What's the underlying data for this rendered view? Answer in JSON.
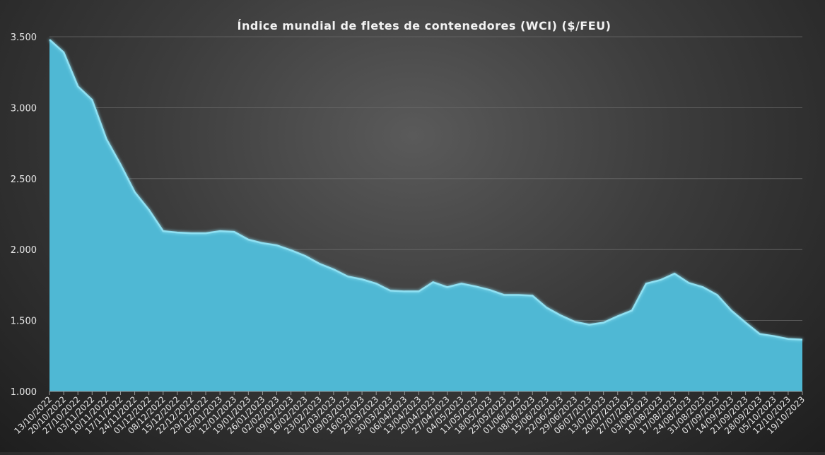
{
  "chart_data": {
    "type": "area",
    "title": "Índice mundial de fletes de contenedores (WCI) ($/FEU)",
    "xlabel": "",
    "ylabel": "",
    "ylim": [
      1000,
      3500
    ],
    "yticks": [
      1000,
      1500,
      2000,
      2500,
      3000,
      3500
    ],
    "ytick_labels": [
      "1.000",
      "1.500",
      "2.000",
      "2.500",
      "3.000",
      "3.500"
    ],
    "grid": true,
    "legend": "none",
    "area_color": "#4fb8d4",
    "area_edge_color": "#8fe0f2",
    "categories": [
      "13/10/2022",
      "20/10/2022",
      "27/10/2022",
      "03/11/2022",
      "10/11/2022",
      "17/11/2022",
      "24/11/2022",
      "01/12/2022",
      "08/12/2022",
      "15/12/2022",
      "22/12/2022",
      "29/12/2022",
      "05/01/2023",
      "12/01/2023",
      "19/01/2023",
      "26/01/2023",
      "02/02/2023",
      "09/02/2023",
      "16/02/2023",
      "23/02/2023",
      "02/03/2023",
      "09/03/2023",
      "16/03/2023",
      "23/03/2023",
      "30/03/2023",
      "06/04/2023",
      "13/04/2023",
      "20/04/2023",
      "27/04/2023",
      "04/05/2023",
      "11/05/2023",
      "18/05/2023",
      "25/05/2023",
      "01/06/2023",
      "08/06/2023",
      "15/06/2023",
      "22/06/2023",
      "29/06/2023",
      "06/07/2023",
      "13/07/2023",
      "20/07/2023",
      "27/07/2023",
      "03/08/2023",
      "10/08/2023",
      "17/08/2023",
      "24/08/2023",
      "31/08/2023",
      "07/09/2023",
      "14/09/2023",
      "21/09/2023",
      "28/09/2023",
      "05/10/2023",
      "12/10/2023",
      "19/10/2023"
    ],
    "values": [
      3480,
      3390,
      3150,
      3055,
      2780,
      2600,
      2405,
      2280,
      2130,
      2120,
      2115,
      2115,
      2130,
      2125,
      2070,
      2045,
      2030,
      1995,
      1955,
      1900,
      1860,
      1810,
      1790,
      1760,
      1710,
      1705,
      1705,
      1770,
      1735,
      1760,
      1740,
      1715,
      1680,
      1680,
      1675,
      1590,
      1535,
      1490,
      1470,
      1485,
      1530,
      1570,
      1760,
      1785,
      1830,
      1765,
      1735,
      1680,
      1570,
      1485,
      1405,
      1390,
      1370,
      1365
    ]
  }
}
